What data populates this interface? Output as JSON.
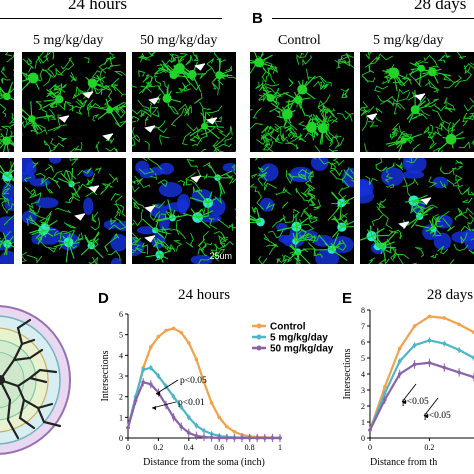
{
  "panel_A": {
    "group_header": "24 hours",
    "columns": [
      "5 mg/kg/day",
      "50 mg/kg/day"
    ],
    "scale_bar": "25um"
  },
  "panel_B": {
    "letter": "B",
    "group_header": "28 days",
    "columns": [
      "Control",
      "5 mg/kg/day"
    ]
  },
  "colors": {
    "microglia_green": "#22d42a",
    "nuclei_blue": "#1530d8",
    "cyan_overlap": "#2ee6c8",
    "control": "#f2a24a",
    "dose_5": "#4fb6c8",
    "dose_50": "#8a62aa",
    "sholl_ring": "#7ec8a0"
  },
  "arrows": "white",
  "chart_data": [
    {
      "panel": "D",
      "type": "line",
      "title": "24 hours",
      "xlabel": "Distance from the soma (inch)",
      "ylabel": "Intersections",
      "xlim": [
        0,
        1
      ],
      "ylim": [
        0,
        6
      ],
      "xticks": [
        "0",
        "0.2",
        "0.4",
        "0.6",
        "0.8",
        "1"
      ],
      "yticks": [
        "0",
        "1",
        "2",
        "3",
        "4",
        "5",
        "6"
      ],
      "legend": [
        "Control",
        "5 mg/kg/day",
        "50 mg/kg/day"
      ],
      "annotations": [
        "p<0.05",
        "p<0.01"
      ],
      "x": [
        0.0,
        0.05,
        0.1,
        0.15,
        0.2,
        0.25,
        0.3,
        0.35,
        0.4,
        0.45,
        0.5,
        0.55,
        0.6,
        0.65,
        0.7,
        0.75,
        0.8,
        0.85,
        0.9,
        0.95,
        1.0
      ],
      "series": [
        {
          "name": "Control",
          "values": [
            0.5,
            1.9,
            3.4,
            4.4,
            4.9,
            5.2,
            5.3,
            5.1,
            4.6,
            3.8,
            2.7,
            1.7,
            1.0,
            0.55,
            0.3,
            0.15,
            0.08,
            0.05,
            0.03,
            0.02,
            0.0
          ]
        },
        {
          "name": "5 mg/kg/day",
          "values": [
            0.5,
            2.0,
            3.3,
            3.4,
            3.0,
            2.5,
            2.0,
            1.5,
            1.0,
            0.6,
            0.35,
            0.2,
            0.1,
            0.05,
            0.03,
            0.02,
            0.01,
            0.0,
            0.0,
            0.0,
            0.0
          ]
        },
        {
          "name": "50 mg/kg/day",
          "values": [
            0.5,
            1.8,
            2.7,
            2.6,
            2.2,
            1.6,
            1.0,
            0.55,
            0.25,
            0.1,
            0.05,
            0.02,
            0.0,
            0.0,
            0.0,
            0.0,
            0.0,
            0.0,
            0.0,
            0.0,
            0.0
          ]
        }
      ]
    },
    {
      "panel": "E",
      "type": "line",
      "title": "28 days",
      "xlabel": "Distance from th",
      "ylabel": "Intersections",
      "xlim": [
        0,
        0.35
      ],
      "ylim": [
        0,
        8
      ],
      "xticks": [
        "0",
        "0.2"
      ],
      "yticks": [
        "0",
        "1",
        "2",
        "3",
        "4",
        "5",
        "6",
        "7",
        "8"
      ],
      "annotations": [
        "p<0.05",
        "p<0.05"
      ],
      "x": [
        0.0,
        0.05,
        0.1,
        0.15,
        0.2,
        0.25,
        0.3,
        0.35
      ],
      "series": [
        {
          "name": "Control",
          "values": [
            0.5,
            3.2,
            5.6,
            7.0,
            7.6,
            7.5,
            7.1,
            6.6
          ]
        },
        {
          "name": "5 mg/kg/day",
          "values": [
            0.5,
            2.8,
            4.8,
            5.8,
            6.1,
            5.9,
            5.5,
            5.0
          ]
        },
        {
          "name": "50 mg/kg/day",
          "values": [
            0.5,
            2.4,
            4.0,
            4.6,
            4.7,
            4.4,
            4.1,
            3.8
          ]
        }
      ]
    }
  ]
}
